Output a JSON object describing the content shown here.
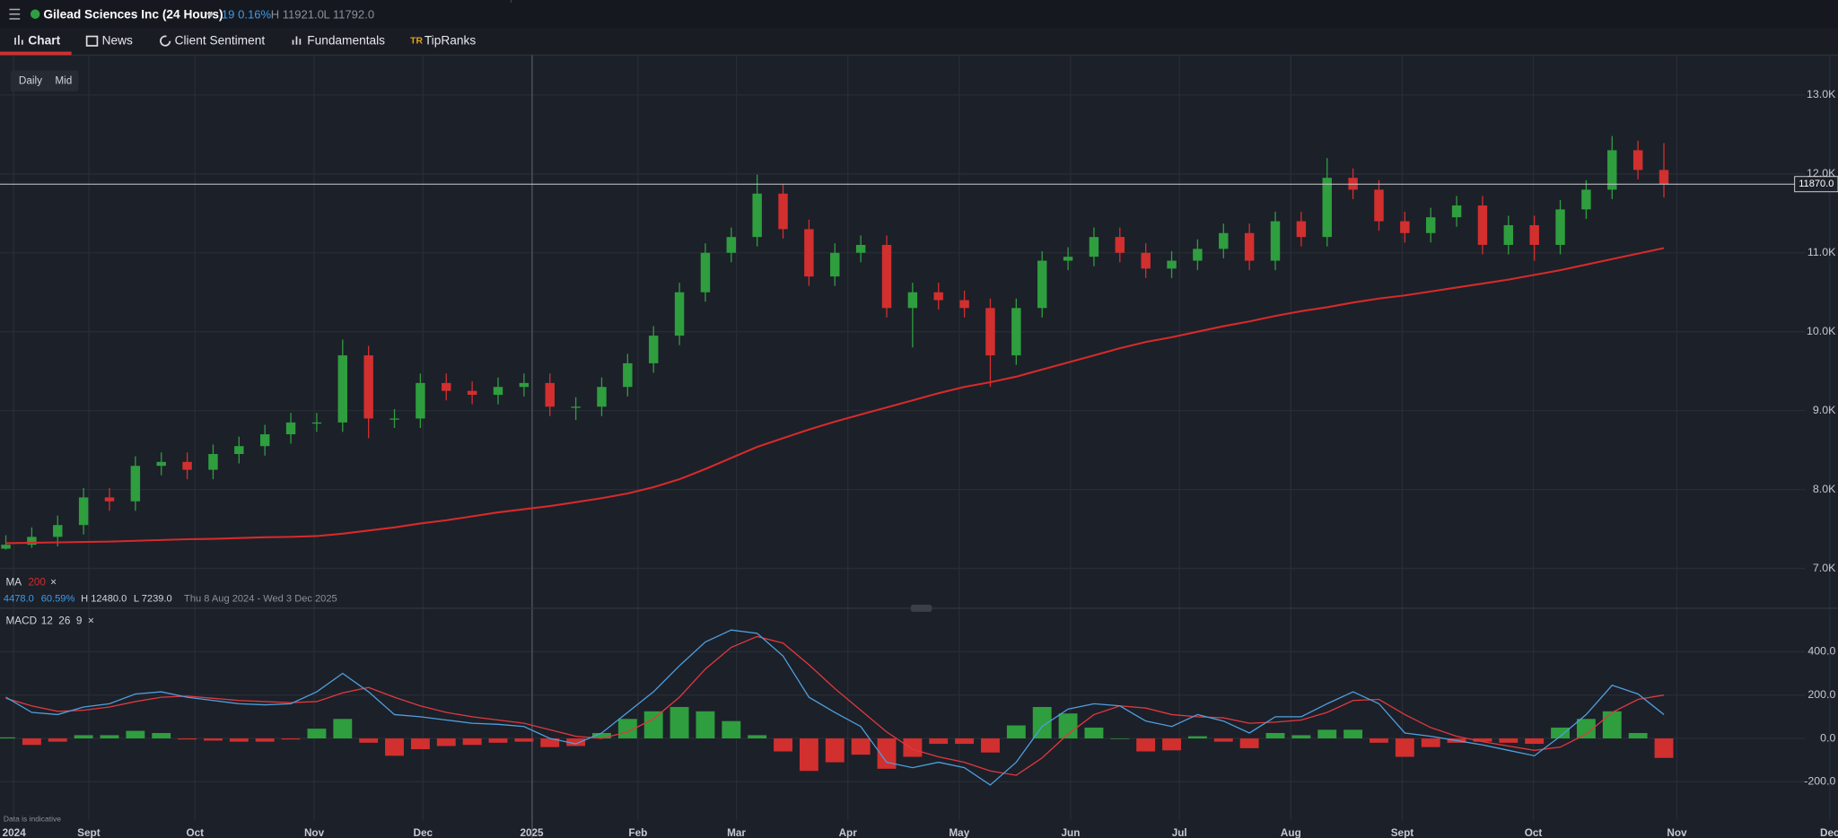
{
  "header": {
    "instrument": "Gilead Sciences Inc (24 Hours)",
    "change": "19",
    "change_pct": "0.16%",
    "high": "H 11921.0",
    "low": "L 11792.0"
  },
  "tabs": [
    "Chart",
    "News",
    "Client Sentiment",
    "Fundamentals",
    "TipRanks"
  ],
  "buttons": [
    "Daily",
    "Mid"
  ],
  "footer_note": "Data is indicative",
  "chart_data": [
    {
      "type": "candlestick",
      "up_color": "#2e9e3e",
      "down_color": "#d22f2f",
      "open": [
        7250,
        7300,
        7400,
        7550,
        7900,
        7850,
        8300,
        8350,
        8250,
        8450,
        8550,
        8700,
        8850,
        8850,
        9700,
        8900,
        8900,
        9350,
        9250,
        9200,
        9300,
        9350,
        9050,
        9050,
        9300,
        9600,
        9950,
        10500,
        11000,
        11200,
        11750,
        11300,
        10700,
        11000,
        11100,
        10300,
        10500,
        10400,
        10300,
        9700,
        10300,
        10900,
        10950,
        11200,
        11000,
        10800,
        10900,
        11050,
        11250,
        10900,
        11400,
        11200,
        11950,
        11800,
        11400,
        11250,
        11450,
        11600,
        11100,
        11350,
        11100,
        11550,
        11800,
        12300,
        12050
      ],
      "high": [
        7420,
        7520,
        7670,
        8020,
        8020,
        8420,
        8470,
        8470,
        8570,
        8670,
        8820,
        8970,
        8970,
        9900,
        9820,
        9020,
        9470,
        9470,
        9370,
        9420,
        9470,
        9470,
        9170,
        9420,
        9720,
        10070,
        10620,
        11120,
        11320,
        11990,
        11870,
        11420,
        11120,
        11220,
        11220,
        10620,
        10620,
        10520,
        10420,
        10420,
        11020,
        11070,
        11320,
        11320,
        11120,
        11020,
        11170,
        11370,
        11370,
        11520,
        11520,
        12200,
        12070,
        11920,
        11520,
        11570,
        11720,
        11720,
        11470,
        11470,
        11670,
        11920,
        12480,
        12420,
        12390
      ],
      "low": [
        7239,
        7260,
        7280,
        7430,
        7730,
        7730,
        8180,
        8130,
        8130,
        8330,
        8430,
        8580,
        8730,
        8730,
        8650,
        8780,
        8780,
        9130,
        9080,
        9080,
        9180,
        8930,
        8880,
        8930,
        9180,
        9480,
        9830,
        10380,
        10880,
        11080,
        11180,
        10580,
        10580,
        10880,
        10180,
        9800,
        10280,
        10180,
        9300,
        9580,
        10180,
        10780,
        10830,
        10880,
        10680,
        10680,
        10780,
        10930,
        10780,
        10780,
        11080,
        11080,
        11680,
        11280,
        11130,
        11130,
        11330,
        10980,
        10980,
        10900,
        10980,
        11430,
        11680,
        11930,
        11700
      ],
      "close": [
        7300,
        7400,
        7550,
        7900,
        7850,
        8300,
        8350,
        8250,
        8450,
        8550,
        8700,
        8850,
        8850,
        9700,
        8900,
        8900,
        9350,
        9250,
        9200,
        9300,
        9350,
        9050,
        9050,
        9300,
        9600,
        9950,
        10500,
        11000,
        11200,
        11750,
        11300,
        10700,
        11000,
        11100,
        10300,
        10500,
        10400,
        10300,
        9700,
        10300,
        10900,
        10950,
        11200,
        11000,
        10800,
        10900,
        11050,
        11250,
        10900,
        11400,
        11200,
        11950,
        11800,
        11400,
        11250,
        11450,
        11600,
        11100,
        11350,
        11100,
        11550,
        11800,
        12300,
        12050,
        11870
      ],
      "moving_average": {
        "name": "MA",
        "period": 200,
        "color": "#d62a2a",
        "values": [
          7320,
          7325,
          7330,
          7335,
          7340,
          7350,
          7360,
          7370,
          7375,
          7385,
          7395,
          7400,
          7410,
          7440,
          7480,
          7520,
          7570,
          7610,
          7660,
          7710,
          7750,
          7790,
          7840,
          7890,
          7950,
          8030,
          8130,
          8260,
          8400,
          8540,
          8650,
          8760,
          8860,
          8950,
          9040,
          9130,
          9220,
          9300,
          9360,
          9430,
          9520,
          9610,
          9700,
          9790,
          9870,
          9930,
          10000,
          10070,
          10130,
          10200,
          10260,
          10310,
          10370,
          10420,
          10460,
          10510,
          10560,
          10610,
          10660,
          10720,
          10780,
          10850,
          10920,
          10990,
          11060
        ]
      },
      "last_price": {
        "value": 11870,
        "label": "11870.0"
      },
      "stats": {
        "change": "4478.0",
        "change_pct": "60.59%",
        "high": "H 12480.0",
        "low": "L 7239.0",
        "period": "Thu 8 Aug 2024 - Wed 3 Dec 2025"
      },
      "ylim": [
        6510,
        13505
      ],
      "yticks": [
        {
          "value": 7000,
          "label": "7.0K"
        },
        {
          "value": 8000,
          "label": "8.0K"
        },
        {
          "value": 9000,
          "label": "9.0K"
        },
        {
          "value": 10000,
          "label": "10.0K"
        },
        {
          "value": 11000,
          "label": "11.0K"
        },
        {
          "value": 12000,
          "label": "12.0K"
        },
        {
          "value": 13000,
          "label": "13.0K"
        }
      ],
      "xlim": [
        -0.226,
        70.72
      ],
      "xticks": [
        {
          "value": 0.3,
          "label": "2024"
        },
        {
          "value": 3.2,
          "label": "Sept"
        },
        {
          "value": 7.3,
          "label": "Oct"
        },
        {
          "value": 11.9,
          "label": "Nov"
        },
        {
          "value": 16.1,
          "label": "Dec"
        },
        {
          "value": 20.3,
          "label": "2025"
        },
        {
          "value": 24.4,
          "label": "Feb"
        },
        {
          "value": 28.2,
          "label": "Mar"
        },
        {
          "value": 32.5,
          "label": "Apr"
        },
        {
          "value": 36.8,
          "label": "May"
        },
        {
          "value": 41.1,
          "label": "Jun"
        },
        {
          "value": 45.3,
          "label": "Jul"
        },
        {
          "value": 49.6,
          "label": "Aug"
        },
        {
          "value": 53.9,
          "label": "Sept"
        },
        {
          "value": 58.96,
          "label": "Oct"
        },
        {
          "value": 64.5,
          "label": "Nov"
        },
        {
          "value": 70.4,
          "label": "Dec"
        }
      ],
      "grid": true
    },
    {
      "type": "macd",
      "title": "MACD",
      "params": [
        12,
        26,
        9
      ],
      "macd_line": {
        "color": "#4f9fdc",
        "values": [
          190,
          120,
          110,
          145,
          160,
          205,
          215,
          190,
          175,
          160,
          155,
          160,
          215,
          300,
          215,
          110,
          100,
          85,
          70,
          65,
          55,
          0,
          -25,
          25,
          120,
          215,
          335,
          445,
          500,
          485,
          380,
          190,
          120,
          55,
          -110,
          -135,
          -110,
          -135,
          -215,
          -110,
          55,
          135,
          160,
          150,
          80,
          55,
          110,
          80,
          25,
          100,
          100,
          160,
          215,
          160,
          25,
          10,
          -10,
          -30,
          -55,
          -80,
          10,
          110,
          245,
          205,
          110
        ]
      },
      "signal_line": {
        "color": "#e0393e",
        "values": [
          185,
          150,
          125,
          130,
          145,
          170,
          190,
          195,
          185,
          175,
          170,
          165,
          170,
          210,
          235,
          190,
          150,
          120,
          100,
          85,
          70,
          40,
          10,
          0,
          30,
          90,
          190,
          320,
          420,
          470,
          440,
          340,
          230,
          130,
          30,
          -50,
          -85,
          -110,
          -150,
          -170,
          -90,
          20,
          110,
          150,
          140,
          110,
          100,
          95,
          70,
          75,
          85,
          120,
          175,
          180,
          110,
          50,
          10,
          -15,
          -35,
          -55,
          -40,
          20,
          120,
          180,
          200
        ]
      },
      "histogram": {
        "up_color": "#2e9e3e",
        "down_color": "#d22f2f",
        "values": [
          5,
          -30,
          -15,
          15,
          15,
          35,
          25,
          -5,
          -10,
          -15,
          -15,
          -5,
          45,
          90,
          -20,
          -80,
          -50,
          -35,
          -30,
          -20,
          -15,
          -40,
          -35,
          25,
          90,
          125,
          145,
          125,
          80,
          15,
          -60,
          -150,
          -110,
          -75,
          -140,
          -85,
          -25,
          -25,
          -65,
          60,
          145,
          115,
          50,
          0,
          -60,
          -55,
          10,
          -15,
          -45,
          25,
          15,
          40,
          40,
          -20,
          -85,
          -40,
          -20,
          -15,
          -20,
          -25,
          50,
          90,
          125,
          25,
          -90
        ]
      },
      "ylim": [
        -378,
        595
      ],
      "yticks": [
        {
          "value": -200,
          "label": "-200.0"
        },
        {
          "value": 0,
          "label": "0.0"
        },
        {
          "value": 200,
          "label": "200.0"
        },
        {
          "value": 400,
          "label": "400.0"
        }
      ],
      "grid": true
    }
  ]
}
